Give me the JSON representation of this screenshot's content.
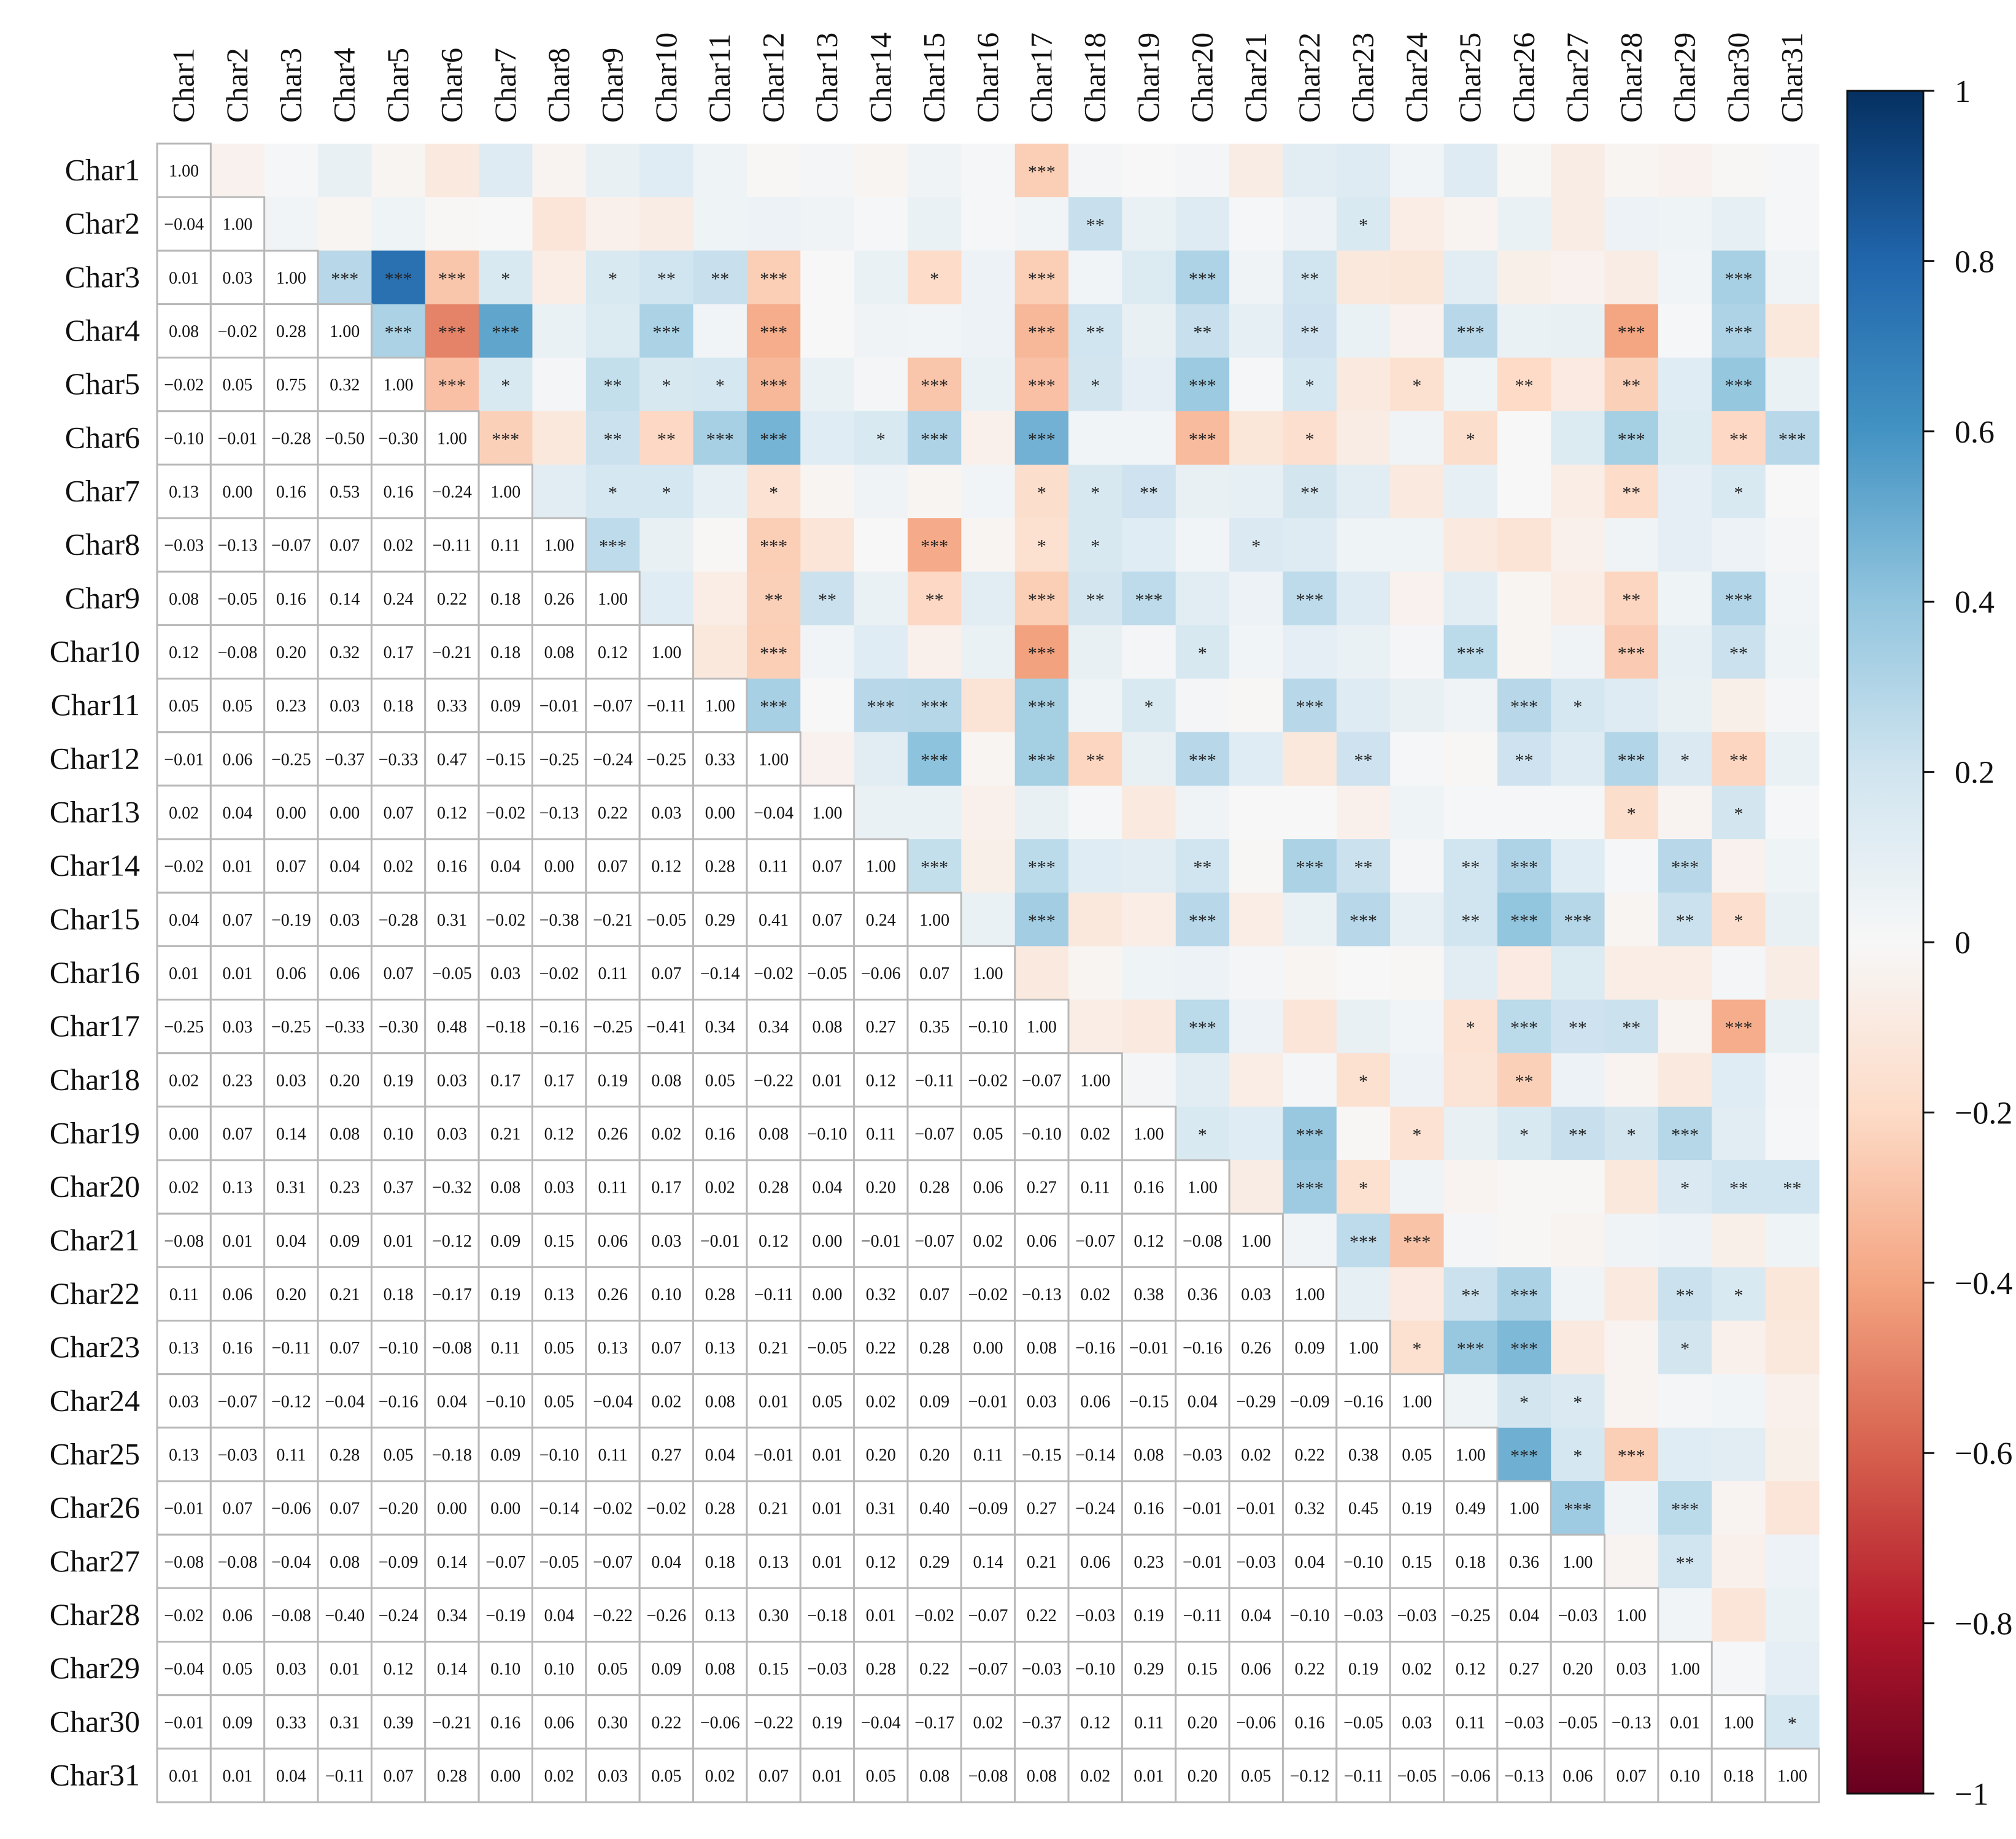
{
  "chart_data": {
    "type": "heatmap",
    "title": "",
    "labels": [
      "Char1",
      "Char2",
      "Char3",
      "Char4",
      "Char5",
      "Char6",
      "Char7",
      "Char8",
      "Char9",
      "Char10",
      "Char11",
      "Char12",
      "Char13",
      "Char14",
      "Char15",
      "Char16",
      "Char17",
      "Char18",
      "Char19",
      "Char20",
      "Char21",
      "Char22",
      "Char23",
      "Char24",
      "Char25",
      "Char26",
      "Char27",
      "Char28",
      "Char29",
      "Char30",
      "Char31"
    ],
    "lower_values_text": [
      [
        "1.00"
      ],
      [
        "-0.04",
        "1.00"
      ],
      [
        "0.01",
        "0.03",
        "1.00"
      ],
      [
        "0.08",
        "-0.02",
        "0.28",
        "1.00"
      ],
      [
        "-0.02",
        "0.05",
        "0.75",
        "0.32",
        "1.00"
      ],
      [
        "-0.10",
        "-0.01",
        "-0.28",
        "-0.50",
        "-0.30",
        "1.00"
      ],
      [
        "0.13",
        "0.00",
        "0.16",
        "0.53",
        "0.16",
        "-0.24",
        "1.00"
      ],
      [
        "-0.03",
        "-0.13",
        "-0.07",
        "0.07",
        "0.02",
        "-0.11",
        "0.11",
        "1.00"
      ],
      [
        "0.08",
        "-0.05",
        "0.16",
        "0.14",
        "0.24",
        "0.22",
        "0.18",
        "0.26",
        "1.00"
      ],
      [
        "0.12",
        "-0.08",
        "0.20",
        "0.32",
        "0.17",
        "-0.21",
        "0.18",
        "0.08",
        "0.12",
        "1.00"
      ],
      [
        "0.05",
        "0.05",
        "0.23",
        "0.03",
        "0.18",
        "0.33",
        "0.09",
        "-0.01",
        "-0.07",
        "-0.11",
        "1.00"
      ],
      [
        "-0.01",
        "0.06",
        "-0.25",
        "-0.37",
        "-0.33",
        "0.47",
        "-0.15",
        "-0.25",
        "-0.24",
        "-0.25",
        "0.33",
        "1.00"
      ],
      [
        "0.02",
        "0.04",
        "0.00",
        "0.00",
        "0.07",
        "0.12",
        "-0.02",
        "-0.13",
        "0.22",
        "0.03",
        "0.00",
        "-0.04",
        "1.00"
      ],
      [
        "-0.02",
        "0.01",
        "0.07",
        "0.04",
        "0.02",
        "0.16",
        "0.04",
        "0.00",
        "0.07",
        "0.12",
        "0.28",
        "0.11",
        "0.07",
        "1.00"
      ],
      [
        "0.04",
        "0.07",
        "-0.19",
        "0.03",
        "-0.28",
        "0.31",
        "-0.02",
        "-0.38",
        "-0.21",
        "-0.05",
        "0.29",
        "0.41",
        "0.07",
        "0.24",
        "1.00"
      ],
      [
        "0.01",
        "0.01",
        "0.06",
        "0.06",
        "0.07",
        "-0.05",
        "0.03",
        "-0.02",
        "0.11",
        "0.07",
        "-0.14",
        "-0.02",
        "-0.05",
        "-0.06",
        "0.07",
        "1.00"
      ],
      [
        "-0.25",
        "0.03",
        "-0.25",
        "-0.33",
        "-0.30",
        "0.48",
        "-0.18",
        "-0.16",
        "-0.25",
        "-0.41",
        "0.34",
        "0.34",
        "0.08",
        "0.27",
        "0.35",
        "-0.10",
        "1.00"
      ],
      [
        "0.02",
        "0.23",
        "0.03",
        "0.20",
        "0.19",
        "0.03",
        "0.17",
        "0.17",
        "0.19",
        "0.08",
        "0.05",
        "-0.22",
        "0.01",
        "0.12",
        "-0.11",
        "-0.02",
        "-0.07",
        "1.00"
      ],
      [
        "0.00",
        "0.07",
        "0.14",
        "0.08",
        "0.10",
        "0.03",
        "0.21",
        "0.12",
        "0.26",
        "0.02",
        "0.16",
        "0.08",
        "-0.10",
        "0.11",
        "-0.07",
        "0.05",
        "-0.10",
        "0.02",
        "1.00"
      ],
      [
        "0.02",
        "0.13",
        "0.31",
        "0.23",
        "0.37",
        "-0.32",
        "0.08",
        "0.03",
        "0.11",
        "0.17",
        "0.02",
        "0.28",
        "0.04",
        "0.20",
        "0.28",
        "0.06",
        "0.27",
        "0.11",
        "0.16",
        "1.00"
      ],
      [
        "-0.08",
        "0.01",
        "0.04",
        "0.09",
        "0.01",
        "-0.12",
        "0.09",
        "0.15",
        "0.06",
        "0.03",
        "-0.01",
        "0.12",
        "0.00",
        "-0.01",
        "-0.07",
        "0.02",
        "0.06",
        "-0.07",
        "0.12",
        "-0.08",
        "1.00"
      ],
      [
        "0.11",
        "0.06",
        "0.20",
        "0.21",
        "0.18",
        "-0.17",
        "0.19",
        "0.13",
        "0.26",
        "0.10",
        "0.28",
        "-0.11",
        "0.00",
        "0.32",
        "0.07",
        "-0.02",
        "-0.13",
        "0.02",
        "0.38",
        "0.36",
        "0.03",
        "1.00"
      ],
      [
        "0.13",
        "0.16",
        "-0.11",
        "0.07",
        "-0.10",
        "-0.08",
        "0.11",
        "0.05",
        "0.13",
        "0.07",
        "0.13",
        "0.21",
        "-0.05",
        "0.22",
        "0.28",
        "0.00",
        "0.08",
        "-0.16",
        "-0.01",
        "-0.16",
        "0.26",
        "0.09",
        "1.00"
      ],
      [
        "0.03",
        "-0.07",
        "-0.12",
        "-0.04",
        "-0.16",
        "0.04",
        "-0.10",
        "0.05",
        "-0.04",
        "0.02",
        "0.08",
        "0.01",
        "0.05",
        "0.02",
        "0.09",
        "-0.01",
        "0.03",
        "0.06",
        "-0.15",
        "0.04",
        "-0.29",
        "-0.09",
        "-0.16",
        "1.00"
      ],
      [
        "0.13",
        "-0.03",
        "0.11",
        "0.28",
        "0.05",
        "-0.18",
        "0.09",
        "-0.10",
        "0.11",
        "0.27",
        "0.04",
        "-0.01",
        "0.01",
        "0.20",
        "0.20",
        "0.11",
        "-0.15",
        "-0.14",
        "0.08",
        "-0.03",
        "0.02",
        "0.22",
        "0.38",
        "0.05",
        "1.00"
      ],
      [
        "-0.01",
        "0.07",
        "-0.06",
        "0.07",
        "-0.20",
        "0.00",
        "0.00",
        "-0.14",
        "-0.02",
        "-0.02",
        "0.28",
        "0.21",
        "0.01",
        "0.31",
        "0.40",
        "-0.09",
        "0.27",
        "-0.24",
        "0.16",
        "-0.01",
        "-0.01",
        "0.32",
        "0.45",
        "0.19",
        "0.49",
        "1.00"
      ],
      [
        "-0.08",
        "-0.08",
        "-0.04",
        "0.08",
        "-0.09",
        "0.14",
        "-0.07",
        "-0.05",
        "-0.07",
        "0.04",
        "0.18",
        "0.13",
        "0.01",
        "0.12",
        "0.29",
        "0.14",
        "0.21",
        "0.06",
        "0.23",
        "-0.01",
        "-0.03",
        "0.04",
        "-0.10",
        "0.15",
        "0.18",
        "0.36",
        "1.00"
      ],
      [
        "-0.02",
        "0.06",
        "-0.08",
        "-0.40",
        "-0.24",
        "0.34",
        "-0.19",
        "0.04",
        "-0.22",
        "-0.26",
        "0.13",
        "0.30",
        "-0.18",
        "0.01",
        "-0.02",
        "-0.07",
        "0.22",
        "-0.03",
        "0.19",
        "-0.11",
        "0.04",
        "-0.10",
        "-0.03",
        "-0.03",
        "-0.25",
        "0.04",
        "-0.03",
        "1.00"
      ],
      [
        "-0.04",
        "0.05",
        "0.03",
        "0.01",
        "0.12",
        "0.14",
        "0.10",
        "0.10",
        "0.05",
        "0.09",
        "0.08",
        "0.15",
        "-0.03",
        "0.28",
        "0.22",
        "-0.07",
        "-0.03",
        "-0.10",
        "0.29",
        "0.15",
        "0.06",
        "0.22",
        "0.19",
        "0.02",
        "0.12",
        "0.27",
        "0.20",
        "0.03",
        "1.00"
      ],
      [
        "-0.01",
        "0.09",
        "0.33",
        "0.31",
        "0.39",
        "-0.21",
        "0.16",
        "0.06",
        "0.30",
        "0.22",
        "-0.06",
        "-0.22",
        "0.19",
        "-0.04",
        "-0.17",
        "0.02",
        "-0.37",
        "0.12",
        "0.11",
        "0.20",
        "-0.06",
        "0.16",
        "-0.05",
        "0.03",
        "0.11",
        "-0.03",
        "-0.05",
        "-0.13",
        "0.01",
        "1.00"
      ],
      [
        "0.01",
        "0.01",
        "0.04",
        "-0.11",
        "0.07",
        "0.28",
        "0.00",
        "0.02",
        "0.03",
        "0.05",
        "0.02",
        "0.07",
        "0.01",
        "0.05",
        "0.08",
        "-0.08",
        "0.08",
        "0.02",
        "0.01",
        "0.20",
        "0.05",
        "-0.12",
        "-0.11",
        "-0.05",
        "-0.06",
        "-0.13",
        "0.06",
        "0.07",
        "0.10",
        "0.18",
        "1.00"
      ]
    ],
    "significance_upper": [
      "1,17,***",
      "2,18,**",
      "2,23,*",
      "3,4,***",
      "3,5,***",
      "3,6,***",
      "3,7,*",
      "3,9,*",
      "3,10,**",
      "3,11,**",
      "3,12,***",
      "3,15,*",
      "3,17,***",
      "3,20,***",
      "3,22,**",
      "3,30,***",
      "4,5,***",
      "4,6,***",
      "4,7,***",
      "4,10,***",
      "4,12,***",
      "4,17,***",
      "4,18,**",
      "4,20,**",
      "4,22,**",
      "4,25,***",
      "4,28,***",
      "4,30,***",
      "5,6,***",
      "5,7,*",
      "5,9,**",
      "5,10,*",
      "5,11,*",
      "5,12,***",
      "5,15,***",
      "5,17,***",
      "5,18,*",
      "5,20,***",
      "5,22,*",
      "5,24,*",
      "5,26,**",
      "5,28,**",
      "5,30,***",
      "6,7,***",
      "6,9,**",
      "6,10,**",
      "6,11,***",
      "6,12,***",
      "6,14,*",
      "6,15,***",
      "6,17,***",
      "6,20,***",
      "6,22,*",
      "6,25,*",
      "6,28,***",
      "6,30,**",
      "6,31,***",
      "7,9,*",
      "7,10,*",
      "7,12,*",
      "7,17,*",
      "7,18,*",
      "7,19,**",
      "7,22,**",
      "7,28,**",
      "7,30,*",
      "8,9,***",
      "8,12,***",
      "8,15,***",
      "8,17,*",
      "8,18,*",
      "8,21,*",
      "9,12,**",
      "9,13,**",
      "9,15,**",
      "9,17,***",
      "9,18,**",
      "9,19,***",
      "9,22,***",
      "9,28,**",
      "9,30,***",
      "10,12,***",
      "10,17,***",
      "10,20,*",
      "10,25,***",
      "10,28,***",
      "10,30,**",
      "11,12,***",
      "11,14,***",
      "11,15,***",
      "11,17,***",
      "11,19,*",
      "11,22,***",
      "11,26,***",
      "11,27,*",
      "12,15,***",
      "12,17,***",
      "12,18,**",
      "12,20,***",
      "12,23,**",
      "12,26,**",
      "12,28,***",
      "12,29,*",
      "12,30,**",
      "13,28,*",
      "13,30,*",
      "14,15,***",
      "14,17,***",
      "14,20,**",
      "14,22,***",
      "14,23,**",
      "14,25,**",
      "14,26,***",
      "14,29,***",
      "15,17,***",
      "15,20,***",
      "15,23,***",
      "15,25,**",
      "15,26,***",
      "15,27,***",
      "15,29,**",
      "15,30,*",
      "17,20,***",
      "17,25,*",
      "17,26,***",
      "17,27,**",
      "17,28,**",
      "17,30,***",
      "18,23,*",
      "18,26,**",
      "19,20,*",
      "19,22,***",
      "19,24,*",
      "19,26,*",
      "19,27,**",
      "19,28,*",
      "19,29,***",
      "20,22,***",
      "20,23,*",
      "20,29,*",
      "20,30,**",
      "20,31,**",
      "21,23,***",
      "21,24,***",
      "22,25,**",
      "22,26,***",
      "22,29,**",
      "22,30,*",
      "23,24,*",
      "23,25,***",
      "23,26,***",
      "23,29,*",
      "24,26,*",
      "24,27,*",
      "25,26,***",
      "25,27,*",
      "25,28,***",
      "26,27,***",
      "26,29,***",
      "27,29,**",
      "30,31,*"
    ],
    "colorbar": {
      "min": -1,
      "max": 1,
      "ticks": [
        "1",
        "0.8",
        "0.6",
        "0.4",
        "0.2",
        "0",
        "−0.2",
        "−0.4",
        "−0.6",
        "−0.8",
        "−1"
      ]
    },
    "xlabel": "",
    "ylabel": ""
  }
}
